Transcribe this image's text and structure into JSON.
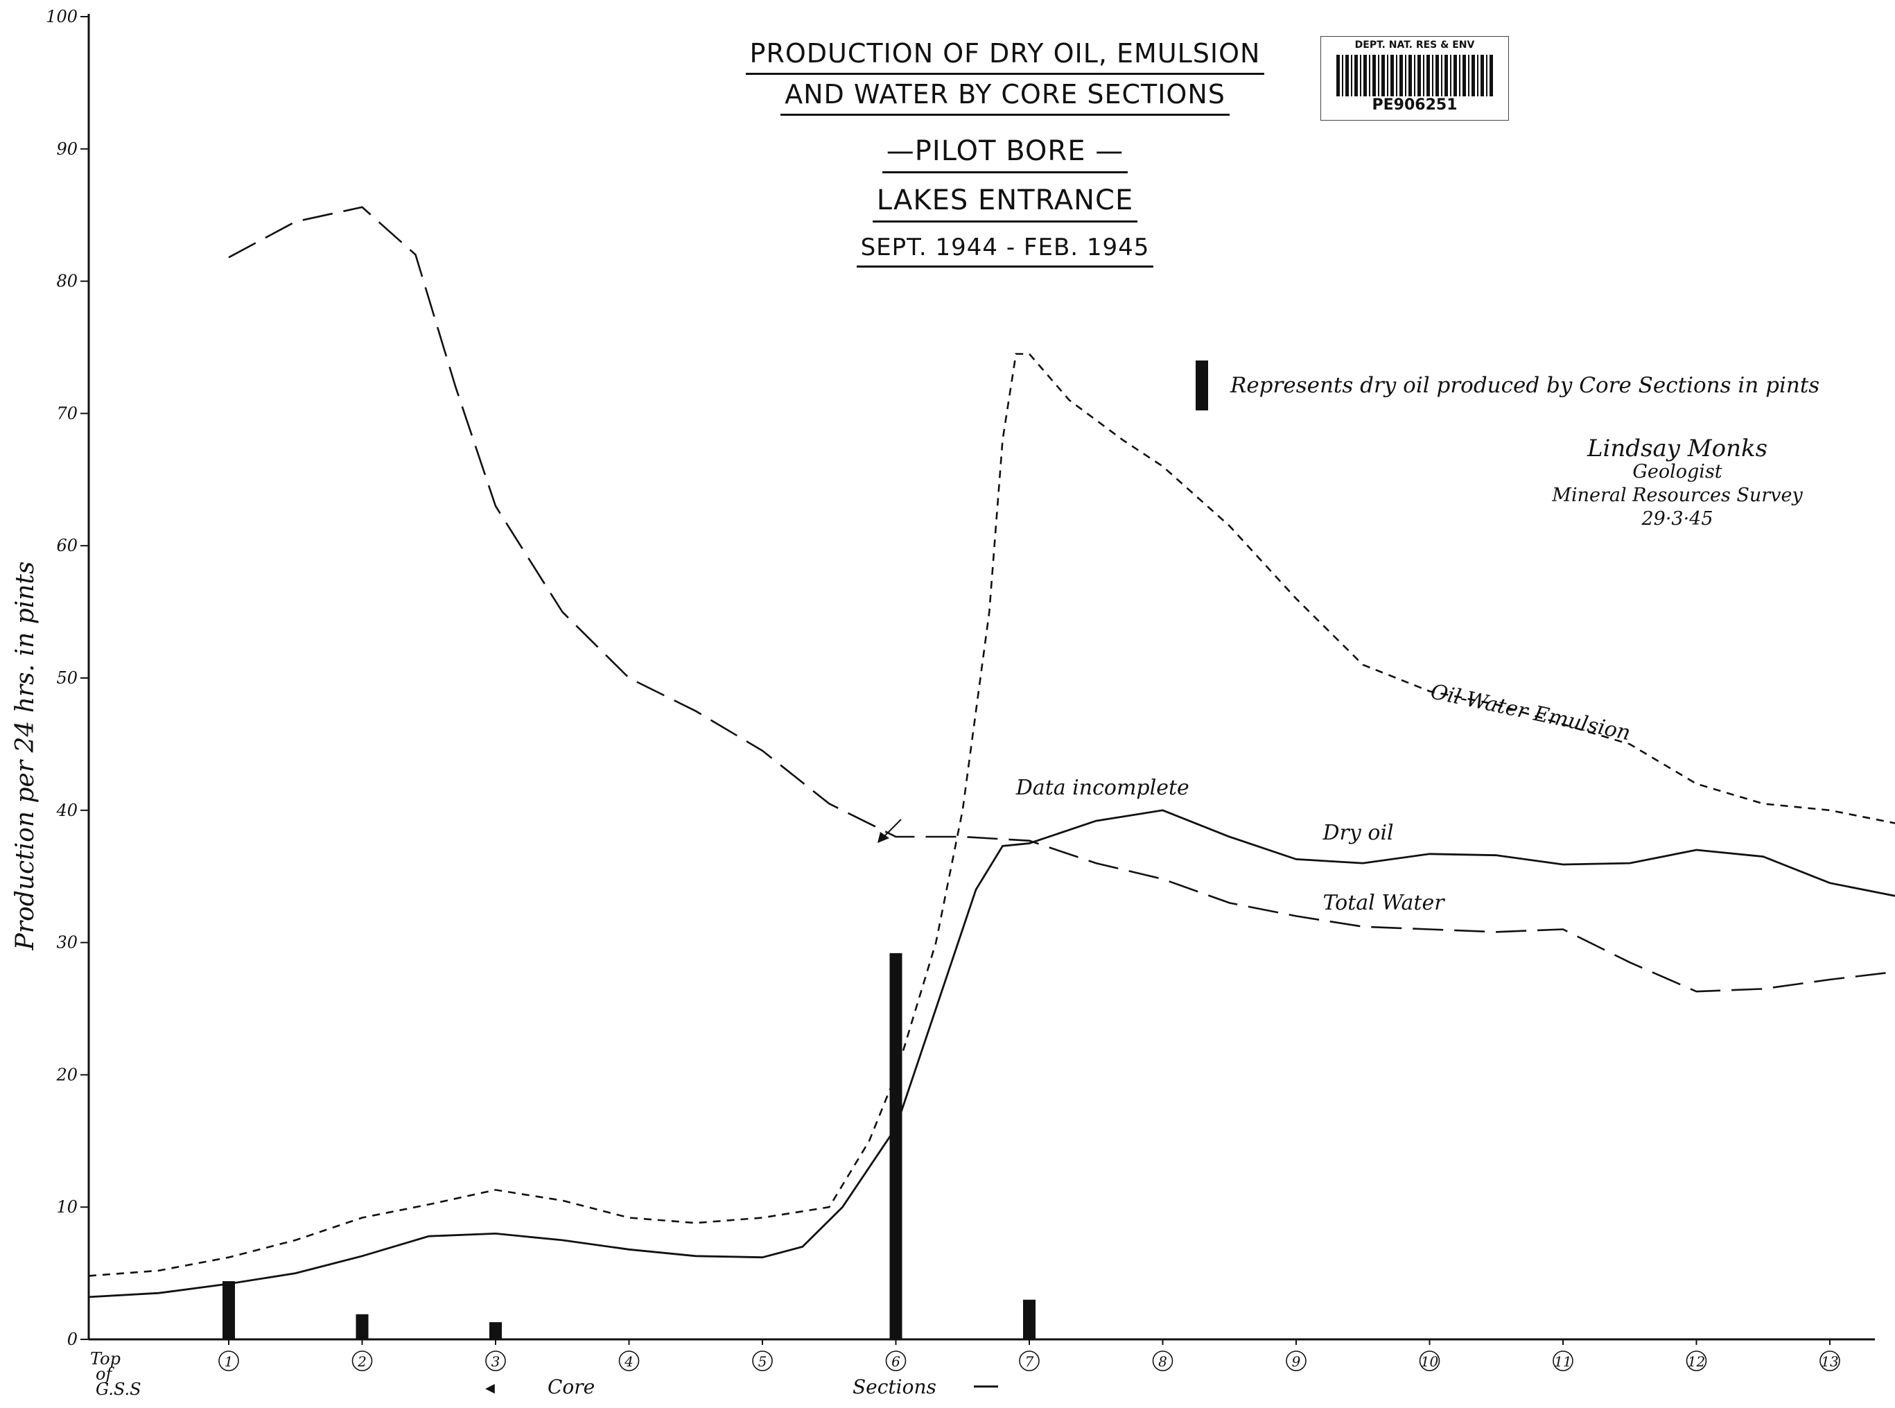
{
  "header": {
    "title_line1": "PRODUCTION OF DRY OIL, EMULSION",
    "title_line2": "AND WATER BY CORE SECTIONS",
    "subtitle1": "—PILOT BORE —",
    "subtitle2": "LAKES ENTRANCE",
    "subtitle3": "SEPT. 1944 - FEB. 1945"
  },
  "stamp": {
    "dept": "DEPT. NAT. RES & ENV",
    "id": "PE906251"
  },
  "legend": {
    "text": "Represents dry oil produced by Core Sections in pints"
  },
  "signature": {
    "mark": "Lindsay Monks",
    "role": "Geologist",
    "org": "Mineral Resources Survey",
    "date": "29·3·45"
  },
  "chart_data": {
    "type": "line",
    "ylabel": "Production per 24 hrs. in pints",
    "xlabel_core": "Core",
    "xlabel_sections": "Sections",
    "ylim": [
      0,
      100
    ],
    "yticks": [
      "0",
      "10",
      "20",
      "30",
      "40",
      "50",
      "60",
      "70",
      "80",
      "90",
      "100"
    ],
    "x_top_label": "Top of G.S.S",
    "x_tick_labels": [
      "1",
      "2",
      "3",
      "4",
      "5",
      "6",
      "7",
      "8",
      "9",
      "10",
      "11",
      "12",
      "13"
    ],
    "series": [
      {
        "name": "Total Water",
        "style": "longdash",
        "color": "#111111",
        "points": [
          [
            0,
            81.8
          ],
          [
            0.5,
            84.5
          ],
          [
            1,
            85.6
          ],
          [
            1.4,
            82
          ],
          [
            1.7,
            72
          ],
          [
            2,
            63
          ],
          [
            2.5,
            55
          ],
          [
            3,
            50
          ],
          [
            3.5,
            47.5
          ],
          [
            4,
            44.5
          ],
          [
            4.5,
            40.5
          ],
          [
            5,
            38
          ],
          [
            5.5,
            38
          ],
          [
            6,
            37.7
          ],
          [
            6.5,
            36
          ],
          [
            7,
            34.8
          ],
          [
            7.5,
            33
          ],
          [
            8,
            32
          ],
          [
            8.5,
            31.2
          ],
          [
            9,
            31
          ],
          [
            9.5,
            30.8
          ],
          [
            10,
            31
          ],
          [
            10.5,
            28.5
          ],
          [
            11,
            26.3
          ],
          [
            11.5,
            26.5
          ],
          [
            12,
            27.2
          ],
          [
            12.5,
            27.8
          ],
          [
            13,
            28.2
          ]
        ]
      },
      {
        "name": "Oil-Water Emulsion",
        "style": "shortdash",
        "color": "#111111",
        "points": [
          [
            -1,
            4.8
          ],
          [
            -0.5,
            5.2
          ],
          [
            0,
            6.2
          ],
          [
            0.5,
            7.5
          ],
          [
            1,
            9.2
          ],
          [
            1.5,
            10.2
          ],
          [
            2,
            11.3
          ],
          [
            2.5,
            10.5
          ],
          [
            3,
            9.2
          ],
          [
            3.5,
            8.8
          ],
          [
            4,
            9.2
          ],
          [
            4.5,
            10
          ],
          [
            4.8,
            15
          ],
          [
            5,
            20
          ],
          [
            5.3,
            30
          ],
          [
            5.5,
            40
          ],
          [
            5.7,
            55
          ],
          [
            5.8,
            68
          ],
          [
            5.9,
            74.5
          ],
          [
            6,
            74.5
          ],
          [
            6.3,
            71
          ],
          [
            6.7,
            68
          ],
          [
            7,
            66
          ],
          [
            7.5,
            61.5
          ],
          [
            8,
            56
          ],
          [
            8.5,
            51
          ],
          [
            9,
            49
          ],
          [
            9.5,
            48
          ],
          [
            10,
            46.5
          ],
          [
            10.5,
            45
          ],
          [
            11,
            42
          ],
          [
            11.5,
            40.5
          ],
          [
            12,
            40
          ],
          [
            12.5,
            39
          ],
          [
            13,
            38
          ]
        ]
      },
      {
        "name": "Dry oil",
        "style": "solid",
        "color": "#111111",
        "points": [
          [
            -1,
            3.2
          ],
          [
            -0.5,
            3.5
          ],
          [
            0,
            4.2
          ],
          [
            0.5,
            5
          ],
          [
            1,
            6.3
          ],
          [
            1.5,
            7.8
          ],
          [
            2,
            8
          ],
          [
            2.5,
            7.5
          ],
          [
            3,
            6.8
          ],
          [
            3.5,
            6.3
          ],
          [
            4,
            6.2
          ],
          [
            4.3,
            7
          ],
          [
            4.6,
            10
          ],
          [
            5,
            16
          ],
          [
            5.3,
            25
          ],
          [
            5.6,
            34
          ],
          [
            5.8,
            37.3
          ],
          [
            6,
            37.5
          ],
          [
            6.5,
            39.2
          ],
          [
            7,
            40
          ],
          [
            7.5,
            38
          ],
          [
            8,
            36.3
          ],
          [
            8.5,
            36
          ],
          [
            9,
            36.7
          ],
          [
            9.5,
            36.6
          ],
          [
            10,
            35.9
          ],
          [
            10.5,
            36
          ],
          [
            11,
            37
          ],
          [
            11.5,
            36.5
          ],
          [
            12,
            34.5
          ],
          [
            12.5,
            33.5
          ],
          [
            13,
            32.8
          ]
        ]
      }
    ],
    "bars": [
      {
        "x": 0,
        "value": 4.4
      },
      {
        "x": 1,
        "value": 1.9
      },
      {
        "x": 2,
        "value": 1.3
      },
      {
        "x": 5,
        "value": 29.2
      },
      {
        "x": 6,
        "value": 3.0
      }
    ],
    "annotations": [
      {
        "text": "Oil-Water Emulsion",
        "x": 9.0,
        "y": 48.5
      },
      {
        "text": "Dry oil",
        "x": 8.2,
        "y": 37.8
      },
      {
        "text": "Total Water",
        "x": 8.2,
        "y": 32.5
      },
      {
        "text": "Data incomplete",
        "x": 5.9,
        "y": 41.2
      }
    ]
  }
}
